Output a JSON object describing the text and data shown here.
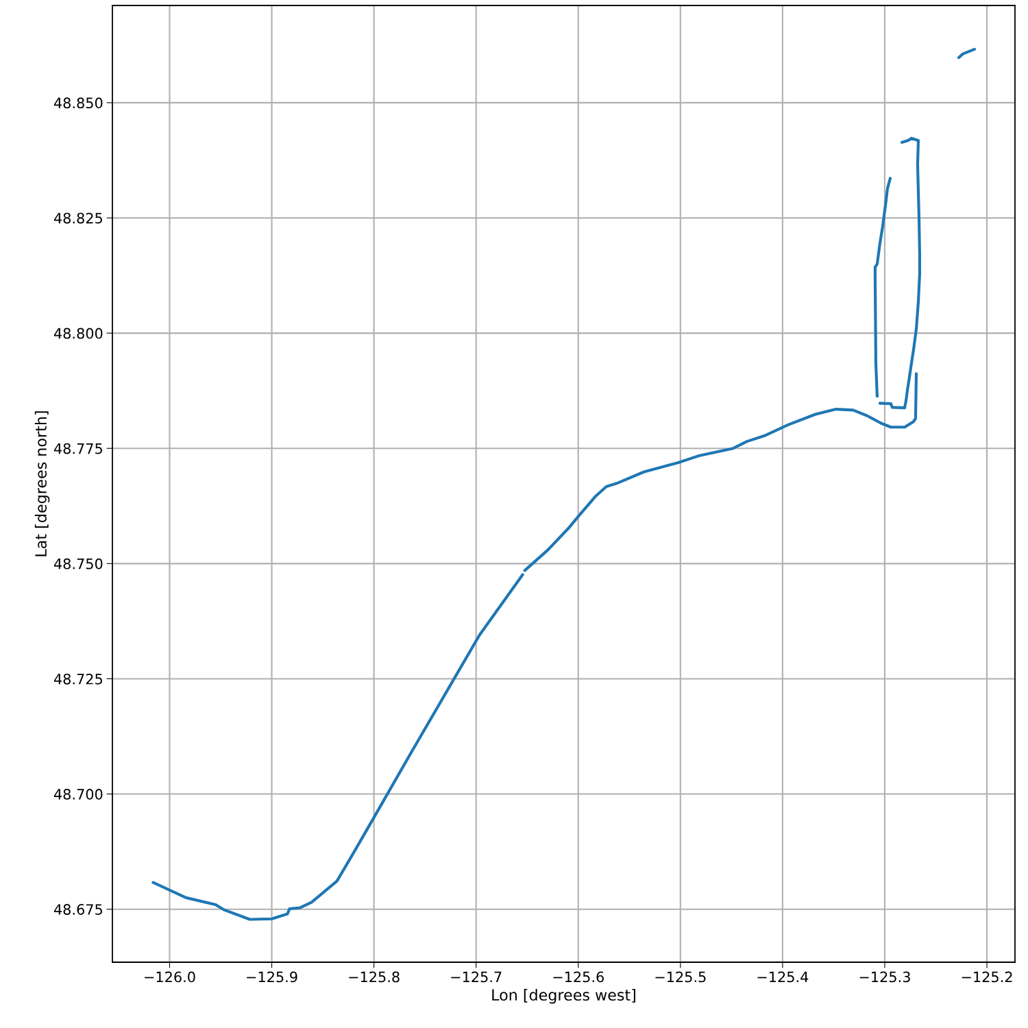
{
  "chart_data": {
    "type": "line",
    "xlabel": "Lon [degrees west]",
    "ylabel": "Lat [degrees north]",
    "x": [
      -126.0161,
      -125.9839,
      -125.955,
      -125.947,
      -125.9215,
      -125.9,
      -125.8846,
      -125.8826,
      -125.8725,
      -125.8611,
      -125.8362,
      -125.8174,
      -125.8,
      -125.7638,
      -125.7302,
      -125.6966,
      -125.6544,
      null,
      -125.6523,
      -125.6295,
      -125.6094,
      -125.5993,
      -125.5826,
      -125.5725,
      -125.5624,
      -125.5356,
      -125.502,
      -125.4819,
      -125.4483,
      -125.4349,
      -125.4181,
      -125.3946,
      -125.3678,
      -125.3477,
      -125.3309,
      -125.3174,
      -125.304,
      -125.294,
      -125.2805,
      -125.2718,
      -125.2698,
      -125.2691,
      null,
      -125.3047,
      -125.294,
      -125.2926,
      -125.2805,
      -125.2792,
      -125.2779,
      -125.2758,
      -125.2738,
      -125.2718,
      -125.2691,
      -125.2671,
      -125.2658,
      -125.2658,
      -125.2664,
      -125.2678,
      -125.2671,
      -125.2738,
      -125.2772,
      -125.2832,
      null,
      -125.3074,
      -125.3087,
      -125.3094,
      -125.3094,
      -125.3074,
      -125.3047,
      -125.302,
      -125.2993,
      -125.2973,
      -125.2946,
      null,
      -125.2275,
      -125.2235,
      -125.2168,
      -125.2121
    ],
    "series": [
      {
        "color": "#1f77b4",
        "values": [
          48.6808,
          48.6775,
          48.676,
          48.6749,
          48.6728,
          48.6729,
          48.674,
          48.6751,
          48.6753,
          48.6765,
          48.6811,
          48.6882,
          48.6949,
          48.7089,
          48.7217,
          48.7345,
          48.7476,
          null,
          48.7485,
          48.753,
          48.7577,
          48.7604,
          48.7647,
          48.7667,
          48.7674,
          48.7699,
          48.7719,
          48.7734,
          48.775,
          48.7765,
          48.7777,
          48.7801,
          48.7824,
          48.7835,
          48.7833,
          48.7821,
          48.7805,
          48.7796,
          48.7796,
          48.7808,
          48.7815,
          48.7912,
          null,
          48.7848,
          48.7847,
          48.7839,
          48.7838,
          48.7853,
          48.7875,
          48.7905,
          48.7935,
          48.7964,
          48.8009,
          48.8068,
          48.8128,
          48.8173,
          48.8247,
          48.8366,
          48.8418,
          48.8423,
          48.8418,
          48.8414,
          null,
          48.7863,
          48.7935,
          48.8128,
          48.8143,
          48.815,
          48.8195,
          48.8232,
          48.8277,
          48.8314,
          48.8336,
          null,
          48.8598,
          48.8606,
          48.8612,
          48.8616
        ]
      }
    ],
    "xlim": [
      -126.056,
      -125.1725
    ],
    "ylim": [
      48.6635,
      48.8711
    ],
    "xticks": [
      {
        "value": -126.0,
        "label": "−126.0"
      },
      {
        "value": -125.9,
        "label": "−125.9"
      },
      {
        "value": -125.8,
        "label": "−125.8"
      },
      {
        "value": -125.7,
        "label": "−125.7"
      },
      {
        "value": -125.6,
        "label": "−125.6"
      },
      {
        "value": -125.5,
        "label": "−125.5"
      },
      {
        "value": -125.4,
        "label": "−125.4"
      },
      {
        "value": -125.3,
        "label": "−125.3"
      },
      {
        "value": -125.2,
        "label": "−125.2"
      }
    ],
    "yticks": [
      {
        "value": 48.675,
        "label": "48.675"
      },
      {
        "value": 48.7,
        "label": "48.700"
      },
      {
        "value": 48.725,
        "label": "48.725"
      },
      {
        "value": 48.75,
        "label": "48.750"
      },
      {
        "value": 48.775,
        "label": "48.775"
      },
      {
        "value": 48.8,
        "label": "48.800"
      },
      {
        "value": 48.825,
        "label": "48.825"
      },
      {
        "value": 48.85,
        "label": "48.850"
      }
    ],
    "grid": true
  }
}
